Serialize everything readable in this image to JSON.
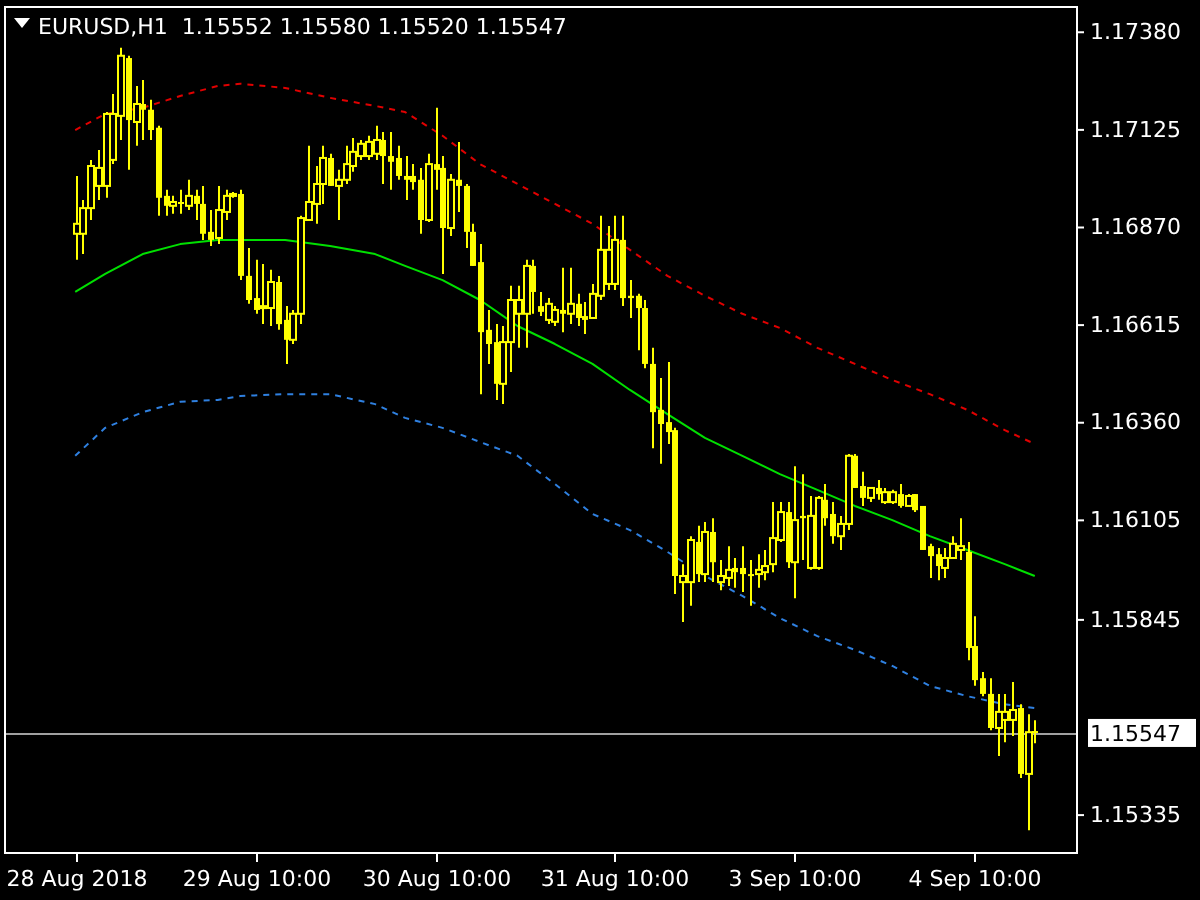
{
  "chart_data": {
    "type": "candlestick",
    "title": "EURUSD,H1  1.15552 1.15580 1.15520 1.15547",
    "color": "#ffff00",
    "categories": [
      "28 Aug 2018",
      null,
      null,
      null,
      null,
      null,
      null,
      null,
      null,
      null,
      null,
      null,
      null,
      null,
      null,
      null,
      null,
      null,
      null,
      null,
      null,
      null,
      null,
      null,
      "29 Aug 10:00",
      null,
      null,
      null,
      null,
      null,
      null,
      null,
      null,
      null,
      null,
      null,
      null,
      null,
      null,
      null,
      null,
      null,
      null,
      null,
      null,
      null,
      null,
      null,
      "30 Aug 10:00",
      null,
      null,
      null,
      null,
      null,
      null,
      null,
      null,
      null,
      null,
      null,
      null,
      null,
      null,
      null,
      null,
      null,
      null,
      null,
      null,
      null,
      null,
      null,
      "31 Aug 10:00",
      null,
      null,
      null,
      null,
      null,
      null,
      null,
      null,
      null,
      null,
      null,
      null,
      null,
      null,
      null,
      null,
      null,
      null,
      null,
      null,
      null,
      null,
      null,
      "3 Sep 10:00",
      null,
      null,
      null,
      null,
      null,
      null,
      null,
      null,
      null,
      null,
      null,
      null,
      null,
      null,
      null,
      null,
      null,
      null,
      null,
      null,
      null,
      null,
      null,
      "4 Sep 10:00",
      null,
      null,
      null,
      null,
      null,
      null,
      null,
      null
    ],
    "ohlc": [
      [
        1.16851,
        1.17002,
        1.16783,
        1.16877
      ],
      [
        1.16851,
        1.16939,
        1.16798,
        1.16918
      ],
      [
        1.16918,
        1.17044,
        1.16887,
        1.17028
      ],
      [
        1.16976,
        1.1707,
        1.16939,
        1.17023
      ],
      [
        1.16976,
        1.17169,
        1.16945,
        1.17164
      ],
      [
        1.17044,
        1.17216,
        1.17033,
        1.17164
      ],
      [
        1.17159,
        1.17337,
        1.17096,
        1.17316
      ],
      [
        1.1731,
        1.17316,
        1.17018,
        1.17148
      ],
      [
        1.17143,
        1.17237,
        1.17081,
        1.1719
      ],
      [
        1.1719,
        1.17253,
        1.17096,
        1.17175
      ],
      [
        1.17175,
        1.17201,
        1.17096,
        1.17122
      ],
      [
        1.17128,
        1.17133,
        1.16898,
        1.16945
      ],
      [
        1.1695,
        1.16966,
        1.16898,
        1.16924
      ],
      [
        1.16924,
        1.1695,
        1.16903,
        1.16934
      ],
      [
        1.16934,
        1.16966,
        1.16903,
        1.16929
      ],
      [
        1.16924,
        1.16992,
        1.16913,
        1.1695
      ],
      [
        1.1695,
        1.16966,
        1.16887,
        1.16929
      ],
      [
        1.16929,
        1.16976,
        1.16835,
        1.16851
      ],
      [
        1.16856,
        1.16913,
        1.16819,
        1.16835
      ],
      [
        1.1684,
        1.16976,
        1.16824,
        1.16913
      ],
      [
        1.16908,
        1.16966,
        1.16887,
        1.1695
      ],
      [
        1.1695,
        1.1696,
        1.16945,
        1.16955
      ],
      [
        1.16955,
        1.16966,
        1.1673,
        1.16741
      ],
      [
        1.16741,
        1.16814,
        1.16668,
        1.16678
      ],
      [
        1.16683,
        1.16783,
        1.16642,
        1.16652
      ],
      [
        1.16657,
        1.16772,
        1.16615,
        1.16662
      ],
      [
        1.16657,
        1.16757,
        1.1661,
        1.16725
      ],
      [
        1.16725,
        1.16741,
        1.166,
        1.16615
      ],
      [
        1.16626,
        1.16662,
        1.16511,
        1.16574
      ],
      [
        1.16574,
        1.16652,
        1.16563,
        1.16642
      ],
      [
        1.16642,
        1.16898,
        1.16615,
        1.16892
      ],
      [
        1.16887,
        1.17081,
        1.16887,
        1.16934
      ],
      [
        1.16929,
        1.17028,
        1.16877,
        1.16981
      ],
      [
        1.16981,
        1.17081,
        1.16929,
        1.17049
      ],
      [
        1.17049,
        1.1706,
        1.16976,
        1.16976
      ],
      [
        1.16976,
        1.17018,
        1.16887,
        1.16992
      ],
      [
        1.16992,
        1.17081,
        1.16981,
        1.17033
      ],
      [
        1.17028,
        1.17101,
        1.17013,
        1.17065
      ],
      [
        1.17054,
        1.17096,
        1.17044,
        1.17086
      ],
      [
        1.17054,
        1.17107,
        1.17044,
        1.17091
      ],
      [
        1.1706,
        1.17133,
        1.17044,
        1.17096
      ],
      [
        1.17096,
        1.17117,
        1.16981,
        1.17054
      ],
      [
        1.17054,
        1.17117,
        1.16966,
        1.17039
      ],
      [
        1.17049,
        1.17081,
        1.16992,
        1.17002
      ],
      [
        1.17002,
        1.17054,
        1.16939,
        1.16992
      ],
      [
        1.17002,
        1.17033,
        1.16966,
        1.16986
      ],
      [
        1.16992,
        1.17023,
        1.16851,
        1.16887
      ],
      [
        1.16887,
        1.1706,
        1.16882,
        1.17033
      ],
      [
        1.17033,
        1.1718,
        1.16966,
        1.17018
      ],
      [
        1.17023,
        1.17054,
        1.16746,
        1.16866
      ],
      [
        1.16866,
        1.17007,
        1.16845,
        1.16992
      ],
      [
        1.16992,
        1.17091,
        1.16908,
        1.16976
      ],
      [
        1.16976,
        1.16981,
        1.16814,
        1.16856
      ],
      [
        1.16856,
        1.16877,
        1.16767,
        1.16767
      ],
      [
        1.16777,
        1.16824,
        1.16432,
        1.16594
      ],
      [
        1.166,
        1.16652,
        1.16511,
        1.16563
      ],
      [
        1.16568,
        1.16615,
        1.16417,
        1.16459
      ],
      [
        1.16459,
        1.1661,
        1.16406,
        1.16568
      ],
      [
        1.16568,
        1.16715,
        1.1649,
        1.16678
      ],
      [
        1.16642,
        1.16715,
        1.16553,
        1.16678
      ],
      [
        1.16642,
        1.16783,
        1.16553,
        1.16767
      ],
      [
        1.16767,
        1.16783,
        1.16642,
        1.16699
      ],
      [
        1.16662,
        1.16699,
        1.16636,
        1.16647
      ],
      [
        1.16626,
        1.16683,
        1.16615,
        1.16668
      ],
      [
        1.16621,
        1.16662,
        1.1661,
        1.16652
      ],
      [
        1.16652,
        1.16762,
        1.16594,
        1.16642
      ],
      [
        1.16642,
        1.16762,
        1.16615,
        1.16668
      ],
      [
        1.16668,
        1.16694,
        1.1661,
        1.16631
      ],
      [
        1.16636,
        1.16673,
        1.16589,
        1.16626
      ],
      [
        1.16631,
        1.1672,
        1.16631,
        1.16694
      ],
      [
        1.16689,
        1.16898,
        1.16678,
        1.16809
      ],
      [
        1.1672,
        1.16871,
        1.16704,
        1.16809
      ],
      [
        1.1672,
        1.16898,
        1.16704,
        1.16835
      ],
      [
        1.16835,
        1.16898,
        1.16662,
        1.16683
      ],
      [
        1.16689,
        1.1673,
        1.16631,
        1.16683
      ],
      [
        1.16689,
        1.16694,
        1.16547,
        1.16657
      ],
      [
        1.16657,
        1.16678,
        1.165,
        1.16511
      ],
      [
        1.16511,
        1.16553,
        1.16291,
        1.16385
      ],
      [
        1.16391,
        1.16474,
        1.1625,
        1.16354
      ],
      [
        1.16359,
        1.16516,
        1.16302,
        1.16333
      ],
      [
        1.16338,
        1.16344,
        1.1591,
        1.15957
      ],
      [
        1.15941,
        1.15988,
        1.15837,
        1.15957
      ],
      [
        1.15941,
        1.16061,
        1.15879,
        1.16051
      ],
      [
        1.16046,
        1.16088,
        1.15941,
        1.15962
      ],
      [
        1.15962,
        1.16098,
        1.15941,
        1.16072
      ],
      [
        1.16072,
        1.16108,
        1.15941,
        1.15993
      ],
      [
        1.15941,
        1.15999,
        1.1592,
        1.15957
      ],
      [
        1.15952,
        1.16035,
        1.15931,
        1.15973
      ],
      [
        1.15978,
        1.16004,
        1.15926,
        1.15967
      ],
      [
        1.15978,
        1.16035,
        1.15915,
        1.15962
      ],
      [
        1.15962,
        1.15999,
        1.15879,
        1.15957
      ],
      [
        1.15962,
        1.16014,
        1.15926,
        1.15973
      ],
      [
        1.15967,
        1.16025,
        1.15946,
        1.15983
      ],
      [
        1.15988,
        1.1615,
        1.15967,
        1.16056
      ],
      [
        1.16051,
        1.1615,
        1.16046,
        1.16124
      ],
      [
        1.16124,
        1.1615,
        1.15978,
        1.15993
      ],
      [
        1.15993,
        1.16244,
        1.15899,
        1.16103
      ],
      [
        1.16114,
        1.16223,
        1.15999,
        1.16108
      ],
      [
        1.15978,
        1.16166,
        1.15973,
        1.16114
      ],
      [
        1.15978,
        1.16166,
        1.15973,
        1.16161
      ],
      [
        1.16156,
        1.16197,
        1.16088,
        1.16108
      ],
      [
        1.16119,
        1.1615,
        1.16041,
        1.16061
      ],
      [
        1.16061,
        1.16114,
        1.16025,
        1.16093
      ],
      [
        1.16093,
        1.16276,
        1.16077,
        1.16271
      ],
      [
        1.16271,
        1.16276,
        1.16187,
        1.16187
      ],
      [
        1.16192,
        1.16229,
        1.1614,
        1.16161
      ],
      [
        1.16161,
        1.16187,
        1.1615,
        1.16187
      ],
      [
        1.16187,
        1.16208,
        1.16156,
        1.16171
      ],
      [
        1.1615,
        1.16187,
        1.16145,
        1.16176
      ],
      [
        1.1615,
        1.16182,
        1.16145,
        1.16176
      ],
      [
        1.16171,
        1.16197,
        1.16135,
        1.1614
      ],
      [
        1.1614,
        1.16171,
        1.1614,
        1.16166
      ],
      [
        1.16171,
        1.16171,
        1.16124,
        1.16129
      ],
      [
        1.1614,
        1.1614,
        1.16025,
        1.16025
      ],
      [
        1.16035,
        1.16041,
        1.15952,
        1.16009
      ],
      [
        1.16014,
        1.1603,
        1.15946,
        1.15983
      ],
      [
        1.15978,
        1.1603,
        1.15952,
        1.16004
      ],
      [
        1.16004,
        1.16061,
        1.16004,
        1.16041
      ],
      [
        1.16025,
        1.16108,
        1.15999,
        1.16035
      ],
      [
        1.1602,
        1.16046,
        1.15737,
        1.15769
      ],
      [
        1.15774,
        1.15852,
        1.1567,
        1.15685
      ],
      [
        1.1569,
        1.15706,
        1.15643,
        1.15649
      ],
      [
        1.15649,
        1.1569,
        1.15554,
        1.1556
      ],
      [
        1.1556,
        1.15649,
        1.15487,
        1.15602
      ],
      [
        1.15581,
        1.15649,
        1.15523,
        1.15602
      ],
      [
        1.15581,
        1.1568,
        1.15539,
        1.15607
      ],
      [
        1.15612,
        1.15622,
        1.15429,
        1.1544
      ],
      [
        1.1544,
        1.15596,
        1.15293,
        1.15549
      ],
      [
        1.15552,
        1.1558,
        1.1552,
        1.15547
      ]
    ],
    "series": [
      {
        "type": "line",
        "color": "#00e000",
        "line_style": "solid",
        "values": [
          1.16699,
          null,
          null,
          null,
          1.16746,
          null,
          null,
          null,
          null,
          1.16798,
          null,
          null,
          null,
          null,
          1.16824,
          null,
          null,
          null,
          null,
          1.16835,
          null,
          null,
          1.16835,
          null,
          null,
          null,
          null,
          null,
          1.16835,
          null,
          null,
          null,
          null,
          null,
          1.16819,
          null,
          null,
          null,
          null,
          null,
          1.16798,
          null,
          null,
          null,
          1.16767,
          null,
          null,
          null,
          null,
          1.1673,
          null,
          null,
          null,
          null,
          1.16678,
          null,
          null,
          null,
          null,
          1.1661,
          null,
          null,
          null,
          null,
          1.16563,
          null,
          null,
          null,
          null,
          1.16511,
          null,
          null,
          null,
          null,
          1.16443,
          null,
          null,
          null,
          null,
          1.1638,
          null,
          null,
          null,
          null,
          1.16318,
          null,
          null,
          null,
          null,
          1.16271,
          null,
          null,
          null,
          null,
          1.16223,
          null,
          null,
          null,
          null,
          1.16182,
          null,
          null,
          null,
          null,
          1.1614,
          null,
          null,
          null,
          null,
          1.16103,
          null,
          null,
          null,
          null,
          1.16061,
          null,
          null,
          null,
          null,
          1.16025,
          null,
          null,
          null,
          null,
          1.15988,
          null,
          null,
          null,
          1.15957
        ]
      },
      {
        "type": "line",
        "color": "#e00000",
        "line_style": "dashed",
        "values": [
          1.17122,
          null,
          null,
          null,
          1.17164,
          null,
          null,
          null,
          null,
          1.1718,
          null,
          null,
          null,
          null,
          1.17211,
          null,
          null,
          null,
          null,
          1.17237,
          null,
          null,
          1.17243,
          null,
          null,
          null,
          null,
          null,
          1.17232,
          null,
          null,
          null,
          null,
          null,
          1.17206,
          null,
          null,
          null,
          null,
          null,
          1.17185,
          null,
          null,
          null,
          1.17169,
          null,
          null,
          null,
          null,
          1.17107,
          null,
          null,
          null,
          null,
          1.17033,
          null,
          null,
          null,
          null,
          1.16981,
          null,
          null,
          null,
          null,
          1.16929,
          null,
          null,
          null,
          null,
          1.16877,
          null,
          null,
          null,
          null,
          1.16809,
          null,
          null,
          null,
          null,
          1.16741,
          null,
          null,
          null,
          null,
          1.16689,
          null,
          null,
          null,
          null,
          1.16642,
          null,
          null,
          null,
          null,
          1.16605,
          null,
          null,
          null,
          null,
          1.16553,
          null,
          null,
          null,
          null,
          1.16511,
          null,
          null,
          null,
          null,
          1.16469,
          null,
          null,
          null,
          null,
          1.16432,
          null,
          null,
          null,
          null,
          1.16391,
          null,
          null,
          null,
          null,
          1.16338,
          null,
          null,
          null,
          1.16302
        ]
      },
      {
        "type": "line",
        "color": "#2f80e0",
        "line_style": "dashed",
        "values": [
          1.16271,
          null,
          null,
          null,
          1.16344,
          null,
          null,
          null,
          null,
          1.16385,
          null,
          null,
          null,
          null,
          1.16412,
          null,
          null,
          null,
          null,
          1.16417,
          null,
          null,
          1.16427,
          null,
          null,
          null,
          null,
          null,
          1.16432,
          null,
          null,
          null,
          null,
          null,
          1.16432,
          null,
          null,
          null,
          null,
          null,
          1.16406,
          null,
          null,
          null,
          1.1637,
          null,
          null,
          null,
          null,
          1.16344,
          null,
          null,
          null,
          null,
          1.16307,
          null,
          null,
          null,
          null,
          1.16271,
          null,
          null,
          null,
          null,
          1.16197,
          null,
          null,
          null,
          null,
          1.16119,
          null,
          null,
          null,
          null,
          1.16077,
          null,
          null,
          null,
          null,
          1.1602,
          null,
          null,
          null,
          null,
          1.15957,
          null,
          null,
          null,
          null,
          1.15905,
          null,
          null,
          null,
          null,
          1.15847,
          null,
          null,
          null,
          null,
          1.158,
          null,
          null,
          null,
          null,
          1.15764,
          null,
          null,
          null,
          null,
          1.15722,
          null,
          null,
          null,
          null,
          1.1567,
          null,
          null,
          null,
          null,
          1.15643,
          null,
          null,
          null,
          null,
          1.15622,
          null,
          null,
          null,
          1.15612
        ]
      }
    ],
    "ylim": [
      1.15236,
      1.17446
    ],
    "yticks": [
      {
        "value": 1.1738,
        "label": "1.17380"
      },
      1.17125,
      {
        "value": 1.1687,
        "label": "1.16870"
      },
      1.16615,
      {
        "value": 1.1636,
        "label": "1.16360"
      },
      1.16105,
      1.15845,
      1.15335
    ],
    "ref_lines": [
      {
        "axis": "y",
        "value": 1.15547,
        "label": "1.15547",
        "color": "#a0a0a0"
      }
    ]
  }
}
